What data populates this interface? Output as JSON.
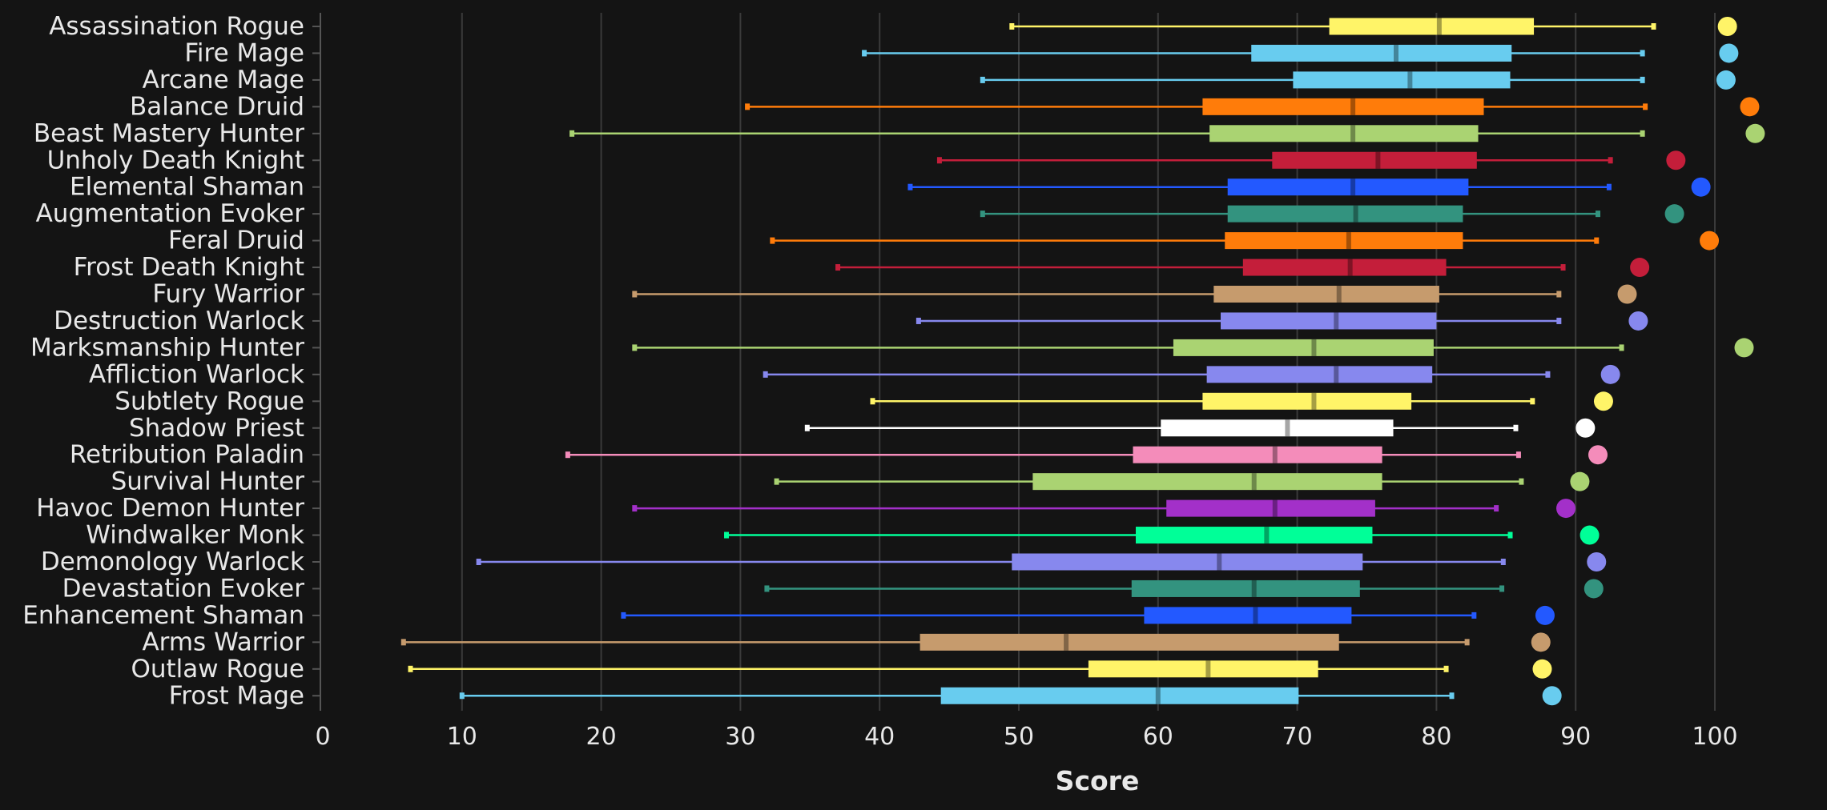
{
  "chart_data": {
    "type": "box",
    "xlabel": "Score",
    "xlim": [
      0,
      105
    ],
    "xticks": [
      0,
      10,
      20,
      30,
      40,
      50,
      60,
      70,
      80,
      90,
      100
    ],
    "grid": "vertical",
    "categories": [
      "Assassination Rogue",
      "Fire Mage",
      "Arcane Mage",
      "Balance Druid",
      "Beast Mastery Hunter",
      "Unholy Death Knight",
      "Elemental Shaman",
      "Augmentation Evoker",
      "Feral Druid",
      "Frost Death Knight",
      "Fury Warrior",
      "Destruction Warlock",
      "Marksmanship Hunter",
      "Affliction Warlock",
      "Subtlety Rogue",
      "Shadow Priest",
      "Retribution Paladin",
      "Survival Hunter",
      "Havoc Demon Hunter",
      "Windwalker Monk",
      "Demonology Warlock",
      "Devastation Evoker",
      "Enhancement Shaman",
      "Arms Warrior",
      "Outlaw Rogue",
      "Frost Mage"
    ],
    "boxes": [
      {
        "min": 49.5,
        "q1": 72.3,
        "median": 80.2,
        "q3": 87.0,
        "max": 95.6,
        "max_point": 100.9,
        "color": "#FFF468"
      },
      {
        "min": 38.9,
        "q1": 66.7,
        "median": 77.1,
        "q3": 85.4,
        "max": 94.8,
        "max_point": 101.0,
        "color": "#68CCEF"
      },
      {
        "min": 47.4,
        "q1": 69.7,
        "median": 78.1,
        "q3": 85.3,
        "max": 94.8,
        "max_point": 100.8,
        "color": "#68CCEF"
      },
      {
        "min": 30.5,
        "q1": 63.2,
        "median": 74.0,
        "q3": 83.4,
        "max": 95.0,
        "max_point": 102.5,
        "color": "#FF7C0A"
      },
      {
        "min": 17.9,
        "q1": 63.7,
        "median": 74.0,
        "q3": 83.0,
        "max": 94.8,
        "max_point": 102.9,
        "color": "#AAD372"
      },
      {
        "min": 44.3,
        "q1": 68.2,
        "median": 75.8,
        "q3": 82.9,
        "max": 92.5,
        "max_point": 97.2,
        "color": "#C41E3A"
      },
      {
        "min": 42.2,
        "q1": 65.0,
        "median": 74.0,
        "q3": 82.3,
        "max": 92.4,
        "max_point": 99.0,
        "color": "#2359FF"
      },
      {
        "min": 47.4,
        "q1": 65.0,
        "median": 74.2,
        "q3": 81.9,
        "max": 91.6,
        "max_point": 97.1,
        "color": "#33937F"
      },
      {
        "min": 32.3,
        "q1": 64.8,
        "median": 73.7,
        "q3": 81.9,
        "max": 91.5,
        "max_point": 99.6,
        "color": "#FF7C0A"
      },
      {
        "min": 37.0,
        "q1": 66.1,
        "median": 73.8,
        "q3": 80.7,
        "max": 89.1,
        "max_point": 94.6,
        "color": "#C41E3A"
      },
      {
        "min": 22.4,
        "q1": 64.0,
        "median": 73.0,
        "q3": 80.2,
        "max": 88.8,
        "max_point": 93.7,
        "color": "#C69B6D"
      },
      {
        "min": 42.8,
        "q1": 64.5,
        "median": 72.8,
        "q3": 80.0,
        "max": 88.8,
        "max_point": 94.5,
        "color": "#8788EE"
      },
      {
        "min": 22.4,
        "q1": 61.1,
        "median": 71.2,
        "q3": 79.8,
        "max": 93.3,
        "max_point": 102.1,
        "color": "#AAD372"
      },
      {
        "min": 31.8,
        "q1": 63.5,
        "median": 72.8,
        "q3": 79.7,
        "max": 88.0,
        "max_point": 92.5,
        "color": "#8788EE"
      },
      {
        "min": 39.5,
        "q1": 63.2,
        "median": 71.2,
        "q3": 78.2,
        "max": 86.9,
        "max_point": 92.0,
        "color": "#FFF468"
      },
      {
        "min": 34.8,
        "q1": 60.2,
        "median": 69.3,
        "q3": 76.9,
        "max": 85.7,
        "max_point": 90.7,
        "color": "#FFFFFF"
      },
      {
        "min": 17.6,
        "q1": 58.2,
        "median": 68.4,
        "q3": 76.1,
        "max": 85.9,
        "max_point": 91.6,
        "color": "#F48CBA"
      },
      {
        "min": 32.6,
        "q1": 51.0,
        "median": 66.9,
        "q3": 76.1,
        "max": 86.1,
        "max_point": 90.3,
        "color": "#AAD372"
      },
      {
        "min": 22.4,
        "q1": 60.6,
        "median": 68.4,
        "q3": 75.6,
        "max": 84.3,
        "max_point": 89.3,
        "color": "#A330C9"
      },
      {
        "min": 29.0,
        "q1": 58.4,
        "median": 67.8,
        "q3": 75.4,
        "max": 85.3,
        "max_point": 91.0,
        "color": "#00FF98"
      },
      {
        "min": 11.2,
        "q1": 49.5,
        "median": 64.4,
        "q3": 74.7,
        "max": 84.8,
        "max_point": 91.5,
        "color": "#8788EE"
      },
      {
        "min": 31.9,
        "q1": 58.1,
        "median": 66.9,
        "q3": 74.5,
        "max": 84.7,
        "max_point": 91.3,
        "color": "#33937F"
      },
      {
        "min": 21.6,
        "q1": 59.0,
        "median": 67.0,
        "q3": 73.9,
        "max": 82.7,
        "max_point": 87.8,
        "color": "#2359FF"
      },
      {
        "min": 5.8,
        "q1": 42.9,
        "median": 53.4,
        "q3": 73.0,
        "max": 82.2,
        "max_point": 87.5,
        "color": "#C69B6D"
      },
      {
        "min": 6.3,
        "q1": 55.0,
        "median": 63.6,
        "q3": 71.5,
        "max": 80.7,
        "max_point": 87.6,
        "color": "#FFF468"
      },
      {
        "min": 10.0,
        "q1": 44.4,
        "median": 60.0,
        "q3": 70.1,
        "max": 81.1,
        "max_point": 88.3,
        "color": "#68CCEF"
      }
    ]
  }
}
